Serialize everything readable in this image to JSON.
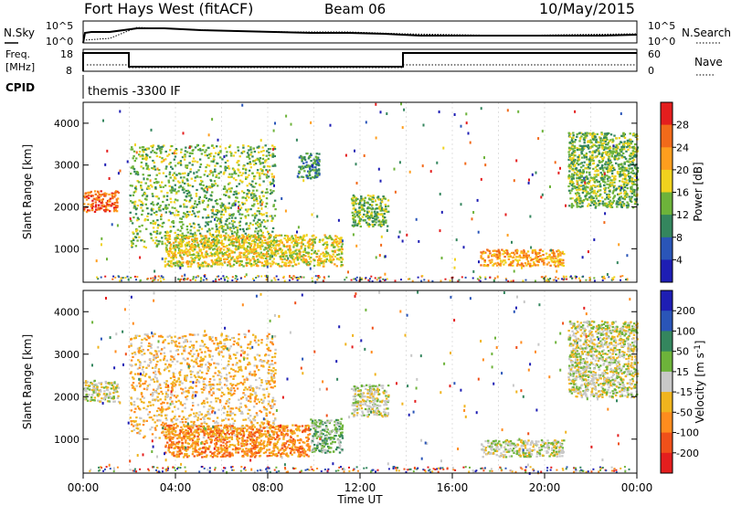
{
  "header": {
    "site": "Fort Hays West (fitACF)",
    "beam": "Beam 06",
    "date": "10/May/2015"
  },
  "noise_panel": {
    "left_label": "N.Sky",
    "right_label": "N.Search",
    "left_ticks": [
      "10^5",
      "10^0"
    ],
    "right_ticks": [
      "10^5",
      "10^0"
    ]
  },
  "freq_panel": {
    "left_label_1": "Freq.",
    "left_label_2": "[MHz]",
    "right_label": "Nave",
    "left_ticks": [
      "18",
      "8"
    ],
    "right_ticks": [
      "60",
      "0"
    ]
  },
  "cpid_panel": {
    "label": "CPID",
    "text": "themis -3300 IF"
  },
  "colors": {
    "power": [
      "#1e1eb4",
      "#2a55b8",
      "#34865e",
      "#6db33a",
      "#f0d21e",
      "#ff9e1e",
      "#f26a1a",
      "#e41e1e"
    ],
    "velocity": [
      "#1e1eb4",
      "#2a55b8",
      "#34865e",
      "#6db33a",
      "#c8c8c8",
      "#f0b41e",
      "#ff8c1e",
      "#f0501a",
      "#e41e1e"
    ]
  },
  "chart_data": [
    {
      "type": "heatmap",
      "name": "power",
      "xlabel": "",
      "ylabel": "Slant Range [km]",
      "x_ticks": [
        "00:00",
        "04:00",
        "08:00",
        "12:00",
        "16:00",
        "20:00",
        "00:00"
      ],
      "y_ticks": [
        "1000",
        "2000",
        "3000",
        "4000"
      ],
      "ylim": [
        200,
        4500
      ],
      "colorbar_label": "Power [dB]",
      "colorbar_ticks": [
        "4",
        "8",
        "12",
        "16",
        "20",
        "24",
        "28"
      ],
      "regions": [
        {
          "t0": 0.0,
          "t1": 1.5,
          "r0": 1900,
          "r1": 2400,
          "level": 6
        },
        {
          "t0": 2.0,
          "t1": 8.3,
          "r0": 1050,
          "r1": 3500,
          "level": 3
        },
        {
          "t0": 3.5,
          "t1": 11.2,
          "r0": 600,
          "r1": 1350,
          "level": 4
        },
        {
          "t0": 9.3,
          "t1": 10.2,
          "r0": 2700,
          "r1": 3300,
          "level": 2
        },
        {
          "t0": 11.6,
          "t1": 13.2,
          "r0": 1550,
          "r1": 2300,
          "level": 3
        },
        {
          "t0": 17.2,
          "t1": 20.8,
          "r0": 600,
          "r1": 1000,
          "level": 5
        },
        {
          "t0": 21.0,
          "t1": 24.0,
          "r0": 2000,
          "r1": 3800,
          "level": 3
        }
      ]
    },
    {
      "type": "heatmap",
      "name": "velocity",
      "xlabel": "Time UT",
      "ylabel": "Slant Range [km]",
      "x_ticks": [
        "00:00",
        "04:00",
        "08:00",
        "12:00",
        "16:00",
        "20:00",
        "00:00"
      ],
      "y_ticks": [
        "1000",
        "2000",
        "3000",
        "4000"
      ],
      "ylim": [
        200,
        4500
      ],
      "colorbar_label": "Velocity [m s^-1]",
      "colorbar_ticks": [
        "200",
        "100",
        "50",
        "15",
        "-15",
        "-50",
        "-100",
        "-200"
      ],
      "regions": [
        {
          "t0": 0.0,
          "t1": 1.5,
          "r0": 1900,
          "r1": 2400,
          "level": 4
        },
        {
          "t0": 2.0,
          "t1": 8.3,
          "r0": 1050,
          "r1": 3500,
          "level": 5
        },
        {
          "t0": 3.5,
          "t1": 9.8,
          "r0": 600,
          "r1": 1350,
          "level": 6
        },
        {
          "t0": 9.8,
          "t1": 11.2,
          "r0": 700,
          "r1": 1500,
          "level": 3
        },
        {
          "t0": 11.6,
          "t1": 13.2,
          "r0": 1550,
          "r1": 2300,
          "level": 4
        },
        {
          "t0": 17.2,
          "t1": 20.8,
          "r0": 600,
          "r1": 1000,
          "level": 4
        },
        {
          "t0": 21.0,
          "t1": 24.0,
          "r0": 2000,
          "r1": 3800,
          "level": 4
        }
      ]
    }
  ]
}
